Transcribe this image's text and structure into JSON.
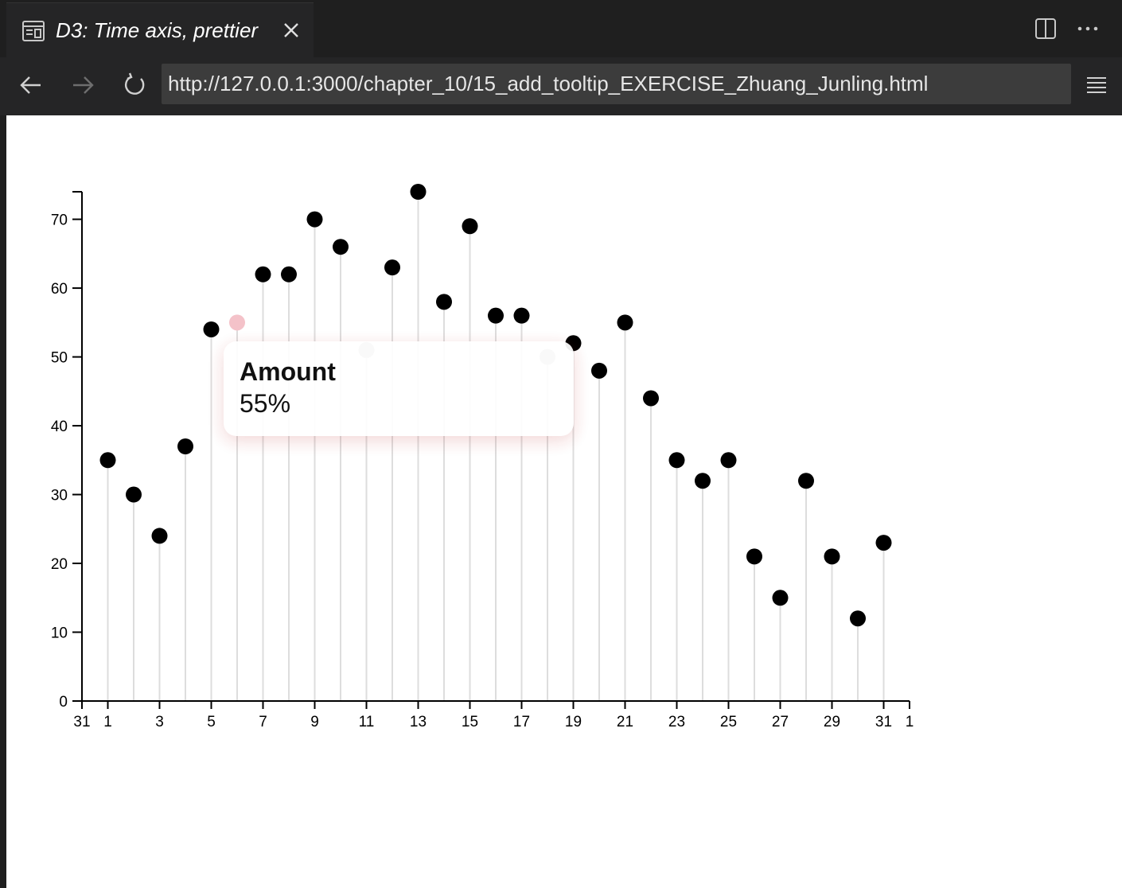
{
  "tab": {
    "title": "D3: Time axis, prettier",
    "icon": "preview-icon"
  },
  "toolbar": {
    "url": "http://127.0.0.1:3000/chapter_10/15_add_tooltip_EXERCISE_Zhuang_Junling.html"
  },
  "tooltip": {
    "label": "Amount",
    "value": "55%"
  },
  "colors": {
    "dot": "#000000",
    "dot_hover": "#f4c2c9",
    "dot_dimmed": "#b3b3b3",
    "stem": "#dddddd"
  },
  "chart_data": {
    "type": "scatter",
    "title": "",
    "xlabel": "",
    "ylabel": "",
    "x_ticks": [
      "31",
      "1",
      "3",
      "5",
      "7",
      "9",
      "11",
      "13",
      "15",
      "17",
      "19",
      "21",
      "23",
      "25",
      "27",
      "29",
      "31",
      "1"
    ],
    "y_ticks": [
      "0",
      "10",
      "20",
      "30",
      "40",
      "50",
      "60",
      "70"
    ],
    "ylim": [
      0,
      74
    ],
    "xlim": [
      "Dec 31",
      "Feb 1"
    ],
    "grid": false,
    "x": [
      1,
      2,
      3,
      4,
      5,
      6,
      7,
      8,
      9,
      10,
      11,
      12,
      13,
      14,
      15,
      16,
      17,
      18,
      19,
      20,
      21,
      22,
      23,
      24,
      25,
      26,
      27,
      28,
      29,
      30,
      31
    ],
    "values": [
      35,
      30,
      24,
      37,
      54,
      55,
      62,
      62,
      70,
      66,
      51,
      63,
      74,
      58,
      69,
      56,
      56,
      50,
      52,
      48,
      55,
      44,
      35,
      32,
      35,
      21,
      15,
      32,
      21,
      12,
      23
    ],
    "highlighted_x": 6,
    "dimmed_x": [
      11,
      18
    ]
  }
}
